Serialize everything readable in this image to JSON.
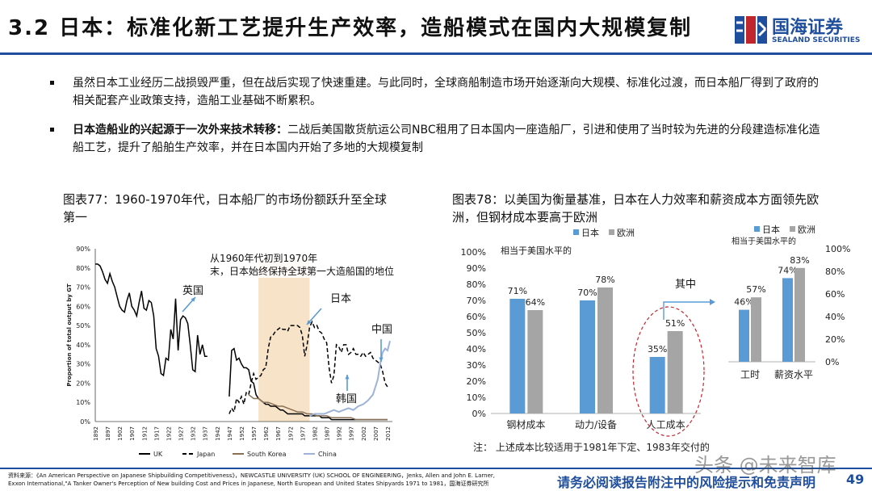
{
  "header": {
    "title": "3.2 日本：标准化新工艺提升生产效率，造船模式在国内大规模复制",
    "logo_cn": "国海证券",
    "logo_en": "SEALAND SECURITIES"
  },
  "bullets": [
    {
      "bold": "",
      "text": "虽然日本工业经历二战损毁严重，但在战后实现了快速重建。与此同时，全球商船制造市场开始逐渐向大规模、标准化过渡，而日本船厂得到了政府的相关配套产业政策支持，造船工业基础不断累积。"
    },
    {
      "bold": "日本造船业的兴起源于一次外来技术转移：",
      "text": "二战后美国散货航运公司NBC租用了日本国内一座造船厂，引进和使用了当时较为先进的分段建造标准化造船工艺，提升了船舶生产效率，并在日本国内开始了多地的大规模复制"
    }
  ],
  "captions": {
    "chart77": "图表77：1960-1970年代，日本船厂的市场份额跃升至全球第一",
    "chart78": "图表78：以美国为衡量基准，日本在人力效率和薪资成本方面领先欧洲，但钢材成本要高于欧洲"
  },
  "chart_data": [
    {
      "type": "line",
      "ylabel": "Proportion of total output by GT",
      "ylim": [
        0,
        90
      ],
      "y_ticks": [
        "0%",
        "10%",
        "20%",
        "30%",
        "40%",
        "50%",
        "60%",
        "70%",
        "80%",
        "90%"
      ],
      "x_ticks": [
        "1892",
        "1897",
        "1902",
        "1907",
        "1912",
        "1917",
        "1922",
        "1927",
        "1932",
        "1937",
        "1942",
        "1947",
        "1952",
        "1957",
        "1962",
        "1967",
        "1972",
        "1977",
        "1982",
        "1987",
        "1992",
        "1997",
        "2002",
        "2007",
        "2012"
      ],
      "xlim": [
        1892,
        2014
      ],
      "highlight_range": [
        1959,
        1980
      ],
      "annotation": "从1960年代初到1970年末，日本始终保持全球第一大造船国的地位",
      "labels": {
        "uk": "英国",
        "japan": "日本",
        "korea": "韩国",
        "china": "中国"
      },
      "legend": [
        "UK",
        "Japan",
        "South Korea",
        "China"
      ],
      "series": [
        {
          "name": "UK",
          "color": "#000000",
          "style": "solid",
          "x": [
            1892,
            1893,
            1894,
            1895,
            1896,
            1897,
            1898,
            1899,
            1900,
            1901,
            1902,
            1903,
            1904,
            1905,
            1906,
            1907,
            1908,
            1909,
            1910,
            1911,
            1912,
            1913,
            1914,
            1915,
            1916,
            1917,
            1918,
            1919,
            1920,
            1921,
            1922,
            1923,
            1924,
            1925,
            1926,
            1927,
            1928,
            1929,
            1930,
            1931,
            1932,
            1933,
            1934,
            1935,
            1936,
            1937,
            1938,
            1939,
            1940,
            1941,
            1942,
            1943,
            1944,
            1945,
            1946,
            1947,
            1948,
            1949,
            1950,
            1951,
            1952,
            1953,
            1954,
            1955,
            1956,
            1957,
            1958,
            1959,
            1960,
            1961,
            1962,
            1963,
            1964,
            1965,
            1966,
            1967,
            1968,
            1969,
            1970,
            1971,
            1972,
            1973,
            1974,
            1975,
            1976,
            1977,
            1978,
            1979,
            1980,
            1981,
            1982,
            1983,
            1984,
            1985,
            1986,
            1987,
            1988,
            1989,
            1990,
            1991,
            1992,
            1993,
            1994,
            1995,
            1996,
            1997,
            1998,
            1999,
            2000,
            2001,
            2002,
            2003,
            2004,
            2005,
            2006,
            2007,
            2008,
            2009,
            2010,
            2011,
            2012
          ],
          "y": [
            82,
            82,
            81,
            78,
            74,
            72,
            77,
            73,
            70,
            65,
            60,
            58,
            57,
            63,
            67,
            60,
            58,
            55,
            62,
            68,
            59,
            58,
            63,
            62,
            55,
            38,
            34,
            25,
            24,
            33,
            32,
            48,
            43,
            64,
            37,
            53,
            55,
            54,
            51,
            40,
            27,
            26,
            45,
            35,
            40,
            34,
            34,
            null,
            null,
            null,
            null,
            null,
            null,
            null,
            null,
            13,
            37,
            38,
            32,
            33,
            30,
            28,
            28,
            27,
            21,
            20,
            14,
            12,
            11,
            10,
            9,
            9,
            8,
            8,
            8,
            7,
            6,
            6,
            5,
            4,
            4,
            4,
            4,
            4,
            4,
            4,
            3,
            3,
            3,
            3,
            3,
            3,
            3,
            2,
            2,
            2,
            2,
            1,
            1,
            1,
            1,
            1,
            1,
            1,
            1,
            1,
            1,
            1,
            1,
            1,
            1,
            1,
            1,
            1,
            1,
            1,
            1,
            1,
            1,
            1,
            1
          ]
        },
        {
          "name": "Japan",
          "color": "#000000",
          "style": "dash",
          "x": [
            1947,
            1948,
            1949,
            1950,
            1951,
            1952,
            1953,
            1954,
            1955,
            1956,
            1957,
            1958,
            1959,
            1960,
            1961,
            1962,
            1963,
            1964,
            1965,
            1966,
            1967,
            1968,
            1969,
            1970,
            1971,
            1972,
            1973,
            1974,
            1975,
            1976,
            1977,
            1978,
            1979,
            1980,
            1981,
            1982,
            1983,
            1984,
            1985,
            1986,
            1987,
            1988,
            1989,
            1990,
            1991,
            1992,
            1993,
            1994,
            1995,
            1996,
            1997,
            1998,
            1999,
            2000,
            2001,
            2002,
            2003,
            2004,
            2005,
            2006,
            2007,
            2008,
            2009,
            2010,
            2011,
            2012
          ],
          "y": [
            4,
            7,
            5,
            12,
            10,
            13,
            9,
            15,
            14,
            20,
            25,
            22,
            23,
            24,
            27,
            28,
            38,
            44,
            45,
            47,
            48,
            49,
            48,
            48,
            47,
            50,
            50,
            50,
            50,
            49,
            45,
            34,
            40,
            49,
            52,
            49,
            50,
            47,
            46,
            43,
            41,
            28,
            20,
            24,
            40,
            39,
            36,
            40,
            40,
            35,
            36,
            38,
            35,
            35,
            34,
            36,
            34,
            35,
            36,
            33,
            32,
            31,
            30,
            26,
            20,
            18
          ]
        },
        {
          "name": "South Korea",
          "color": "#8a7155",
          "style": "solid",
          "x": [
            1955,
            1957,
            1959,
            1961,
            1963,
            1965,
            1967,
            1969,
            1971,
            1973,
            1975,
            1977,
            1979,
            1981,
            1983,
            1985,
            1987,
            1989,
            1991,
            1993,
            1995,
            1997,
            1999,
            2001,
            2003,
            2005,
            2007,
            2009,
            2011,
            2012
          ],
          "y": [
            14,
            12,
            12,
            10,
            10,
            9,
            8,
            8,
            7,
            6,
            5,
            5,
            4,
            4,
            3,
            3,
            3,
            2,
            2,
            2,
            2,
            2,
            1,
            1,
            1,
            1,
            1,
            1,
            1,
            1
          ]
        },
        {
          "name": "China",
          "color": "#9db3d8",
          "style": "solid",
          "x": [
            1980,
            1982,
            1984,
            1986,
            1988,
            1990,
            1992,
            1994,
            1996,
            1998,
            2000,
            2002,
            2004,
            2006,
            2008,
            2009,
            2010,
            2011,
            2012,
            2013
          ],
          "y": [
            3,
            4,
            4,
            4,
            5,
            6,
            5,
            6,
            7,
            6,
            8,
            9,
            11,
            14,
            22,
            30,
            36,
            38,
            37,
            42
          ]
        }
      ]
    },
    {
      "type": "bar",
      "title_left": "相当于美国水平的",
      "legend": [
        "日本",
        "欧洲"
      ],
      "categories": [
        "钢材成本",
        "动力/设备",
        "人工成本"
      ],
      "ylim": [
        0,
        100
      ],
      "y_ticks": [
        "0%",
        "10%",
        "20%",
        "30%",
        "40%",
        "50%",
        "60%",
        "70%",
        "80%",
        "90%",
        "100%"
      ],
      "series": [
        {
          "name": "日本",
          "color": "#5b9bd5",
          "values": [
            71,
            70,
            35
          ],
          "labels": [
            "71%",
            "70%",
            "35%"
          ]
        },
        {
          "name": "欧洲",
          "color": "#a5a5a5",
          "values": [
            64,
            78,
            51
          ],
          "labels": [
            "64%",
            "78%",
            "51%"
          ]
        }
      ],
      "callout": "其中",
      "inset": {
        "title": "相当于美国水平的",
        "legend": [
          "日本",
          "欧洲"
        ],
        "categories": [
          "工时",
          "薪资水平"
        ],
        "ylim": [
          0,
          100
        ],
        "y_ticks": [
          "0%",
          "20%",
          "40%",
          "60%",
          "80%",
          "100%"
        ],
        "series": [
          {
            "name": "日本",
            "color": "#5b9bd5",
            "values": [
              46,
              74
            ],
            "labels": [
              "46%",
              "74%"
            ]
          },
          {
            "name": "欧洲",
            "color": "#a5a5a5",
            "values": [
              57,
              83
            ],
            "labels": [
              "57%",
              "83%"
            ]
          }
        ]
      },
      "note": "注：  上述成本比较适用于1981年下定、1983年交付的"
    }
  ],
  "footer": {
    "source_line1": "资料来源：《An American Perspective on Japanese Shipbuilding Competitiveness》，NEWCASTLE UNIVERSITY (UK) SCHOOL OF ENGINEERING，Jenks, Allen and John E. Larner,",
    "source_line2": "Exxon International,\"A Tanker Owner's Perception of New building Cost and Prices in Japanese, North European and United States Shipyards 1971 to 1981，国海证券研究所",
    "disclaimer": "请务必阅读报告附注中的风险提示和免责声明",
    "page": "49",
    "watermark": "头条 @未来智库"
  }
}
